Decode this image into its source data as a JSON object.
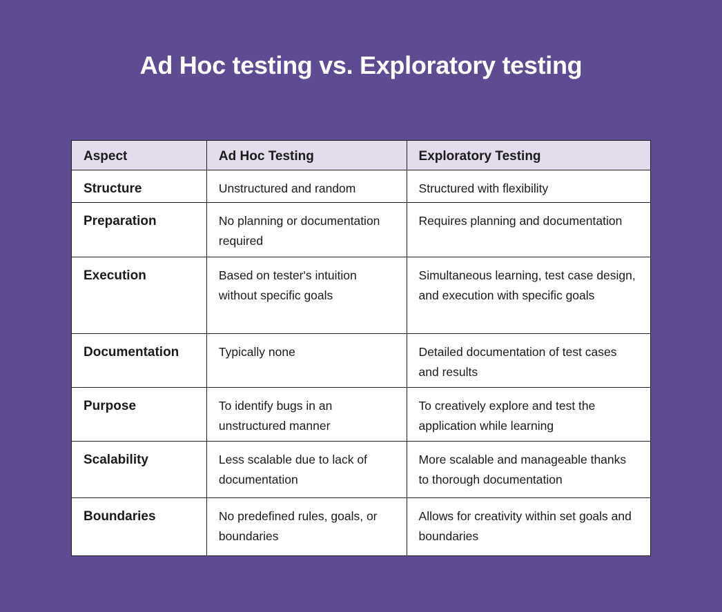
{
  "title": "Ad Hoc testing vs. Exploratory testing",
  "table": {
    "headers": [
      "Aspect",
      "Ad Hoc Testing",
      "Exploratory Testing"
    ],
    "rows": [
      {
        "aspect": "Structure",
        "adhoc": "Unstructured and random",
        "exploratory": "Structured with flexibility"
      },
      {
        "aspect": "Preparation",
        "adhoc": "No planning or documentation required",
        "exploratory": "Requires planning and documentation"
      },
      {
        "aspect": "Execution",
        "adhoc": "Based on tester's intuition without specific goals",
        "exploratory": "Simultaneous learning, test case design, and execution with specific goals"
      },
      {
        "aspect": "Documentation",
        "adhoc": "Typically none",
        "exploratory": "Detailed documentation of test cases and results"
      },
      {
        "aspect": "Purpose",
        "adhoc": "To identify bugs in an unstructured manner",
        "exploratory": "To creatively explore and test the application while learning"
      },
      {
        "aspect": "Scalability",
        "adhoc": "Less scalable due to lack of documentation",
        "exploratory": "More scalable and manageable thanks to thorough documentation"
      },
      {
        "aspect": "Boundaries",
        "adhoc": "No predefined rules, goals, or boundaries",
        "exploratory": "Allows for creativity within set goals and boundaries"
      }
    ]
  },
  "colors": {
    "background": "#5f4b91",
    "header_bg": "#e2dced",
    "title": "#ffffff"
  }
}
